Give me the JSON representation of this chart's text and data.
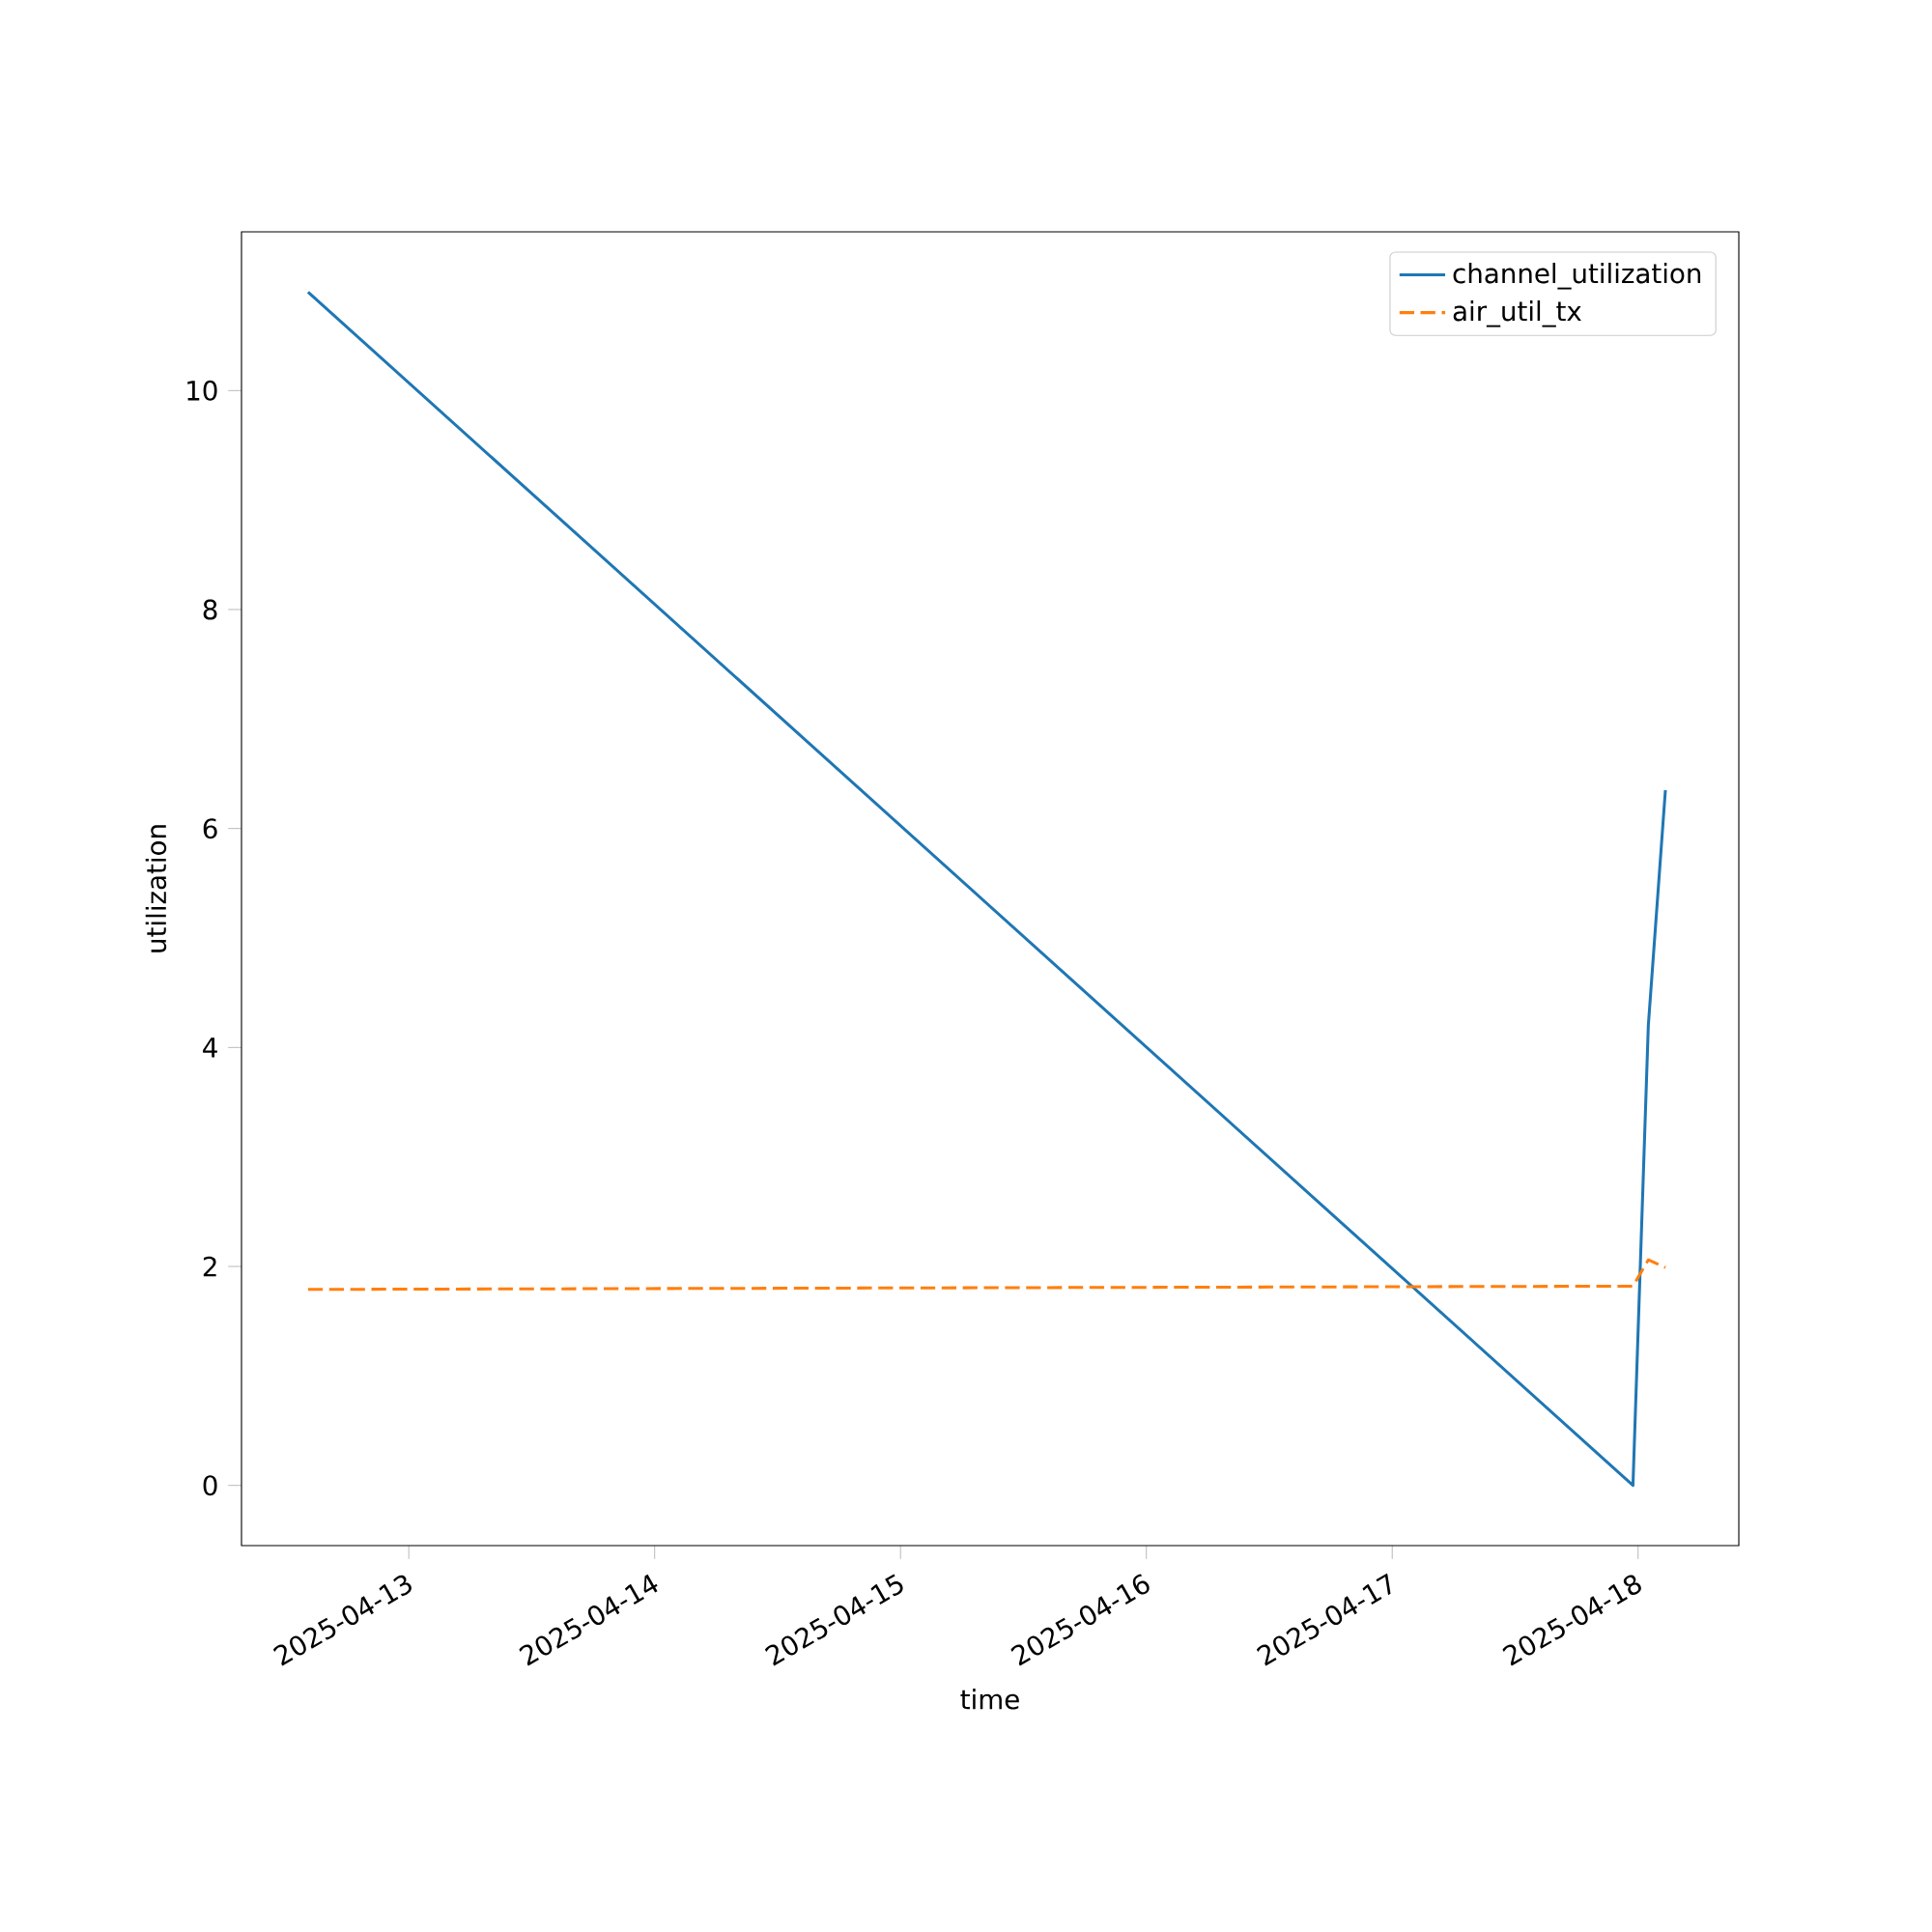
{
  "chart_data": {
    "type": "line",
    "xlabel": "time",
    "ylabel": "utilization",
    "x": [
      "2025-04-12T14:10",
      "2025-04-17T23:30",
      "2025-04-18T01:00",
      "2025-04-18T02:40"
    ],
    "series": [
      {
        "name": "channel_utilization",
        "color": "#1f77b4",
        "line_style": "solid",
        "values": [
          10.9,
          0.0,
          4.2,
          6.35
        ]
      },
      {
        "name": "air_util_tx",
        "color": "#ff7f0e",
        "line_style": "dashed",
        "values": [
          1.79,
          1.82,
          2.06,
          1.99
        ]
      }
    ],
    "xlim": [
      "2025-04-12T07:40",
      "2025-04-18T09:50"
    ],
    "xticks": [
      "2025-04-13",
      "2025-04-14",
      "2025-04-15",
      "2025-04-16",
      "2025-04-17",
      "2025-04-18"
    ],
    "ylim": [
      -0.55,
      11.45
    ],
    "yticks": [
      0,
      2,
      4,
      6,
      8,
      10
    ],
    "grid": false,
    "legend": "top right",
    "marker": "none"
  }
}
